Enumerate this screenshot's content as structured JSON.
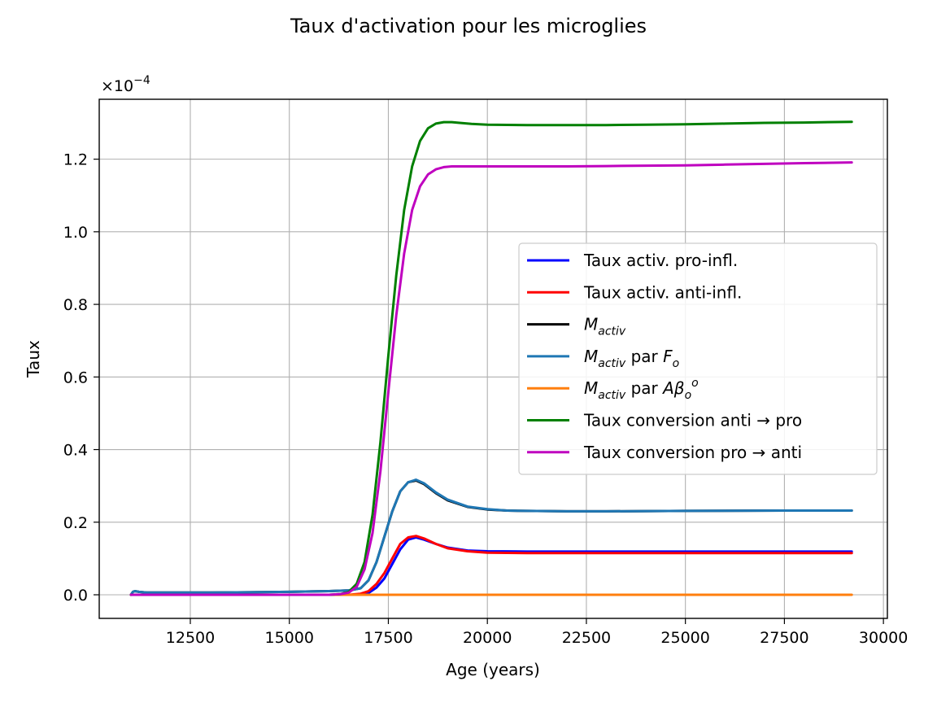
{
  "chart_data": {
    "type": "line",
    "title": "Taux d'activation pour les microglies",
    "xlabel": "Age (years)",
    "ylabel": "Taux",
    "y_multiplier": "×10",
    "y_multiplier_exp": "−4",
    "xlim": [
      10200,
      30100
    ],
    "ylim": [
      -0.065,
      1.365
    ],
    "xticks": [
      12500,
      15000,
      17500,
      20000,
      22500,
      25000,
      27500,
      30000
    ],
    "xtick_labels": [
      "12500",
      "15000",
      "17500",
      "20000",
      "22500",
      "25000",
      "27500",
      "30000"
    ],
    "yticks": [
      0.0,
      0.2,
      0.4,
      0.6,
      0.8,
      1.0,
      1.2
    ],
    "ytick_labels": [
      "0.0",
      "0.2",
      "0.4",
      "0.6",
      "0.8",
      "1.0",
      "1.2"
    ],
    "grid": true,
    "legend_position": "center-right",
    "series": [
      {
        "name": "Taux activ. pro-infl.",
        "legend": [
          {
            "t": "Taux activ. pro-infl."
          }
        ],
        "color": "#0000ff",
        "x": [
          11000,
          11100,
          11300,
          12000,
          14000,
          16000,
          16800,
          17000,
          17200,
          17400,
          17600,
          17800,
          18000,
          18200,
          18400,
          18700,
          19000,
          19500,
          20000,
          21000,
          22000,
          25000,
          27500,
          29200
        ],
        "y": [
          0.0,
          0.0,
          0.0,
          0.0,
          0.0,
          0.0,
          0.0,
          0.005,
          0.02,
          0.045,
          0.085,
          0.125,
          0.152,
          0.158,
          0.152,
          0.14,
          0.13,
          0.122,
          0.12,
          0.119,
          0.119,
          0.119,
          0.119,
          0.119
        ]
      },
      {
        "name": "Taux activ. anti-infl.",
        "legend": [
          {
            "t": "Taux activ. anti-infl."
          }
        ],
        "color": "#ff0000",
        "x": [
          11000,
          11100,
          11300,
          12000,
          14000,
          16000,
          16500,
          16800,
          17000,
          17200,
          17400,
          17600,
          17800,
          18000,
          18200,
          18400,
          18700,
          19000,
          19500,
          20000,
          21000,
          22000,
          25000,
          27500,
          29200
        ],
        "y": [
          0.0,
          0.0,
          0.0,
          0.0,
          0.0,
          0.0,
          0.0,
          0.003,
          0.01,
          0.03,
          0.06,
          0.1,
          0.14,
          0.158,
          0.162,
          0.155,
          0.14,
          0.128,
          0.12,
          0.116,
          0.115,
          0.115,
          0.115,
          0.115,
          0.115
        ]
      },
      {
        "name": "M_activ",
        "legend": [
          {
            "t": "M",
            "i": true
          },
          {
            "t": "activ",
            "i": true,
            "sub": true
          }
        ],
        "color": "#000000",
        "x": [
          11000,
          11050,
          11100,
          11200,
          11400,
          12000,
          13000,
          14000,
          15000,
          16000,
          16500,
          16800,
          17000,
          17200,
          17400,
          17600,
          17800,
          18000,
          18200,
          18400,
          18700,
          19000,
          19500,
          20000,
          20500,
          21000,
          22000,
          23000,
          25000,
          27500,
          29200
        ],
        "y": [
          0.0,
          0.008,
          0.01,
          0.008,
          0.006,
          0.006,
          0.006,
          0.007,
          0.008,
          0.01,
          0.012,
          0.018,
          0.04,
          0.09,
          0.16,
          0.23,
          0.285,
          0.31,
          0.315,
          0.305,
          0.28,
          0.26,
          0.242,
          0.235,
          0.232,
          0.231,
          0.23,
          0.23,
          0.231,
          0.232,
          0.232
        ]
      },
      {
        "name": "M_activ par F_o",
        "legend": [
          {
            "t": "M",
            "i": true
          },
          {
            "t": "activ",
            "i": true,
            "sub": true
          },
          {
            "t": " par "
          },
          {
            "t": "F",
            "i": true
          },
          {
            "t": "o",
            "i": true,
            "sub": true
          }
        ],
        "color": "#1f77b4",
        "x": [
          11000,
          11050,
          11100,
          11200,
          11400,
          12000,
          13000,
          14000,
          15000,
          16000,
          16500,
          16800,
          17000,
          17200,
          17400,
          17600,
          17800,
          18000,
          18200,
          18400,
          18700,
          19000,
          19500,
          20000,
          20500,
          21000,
          22000,
          23000,
          25000,
          27500,
          29200
        ],
        "y": [
          0.0,
          0.008,
          0.01,
          0.008,
          0.006,
          0.006,
          0.006,
          0.007,
          0.008,
          0.01,
          0.012,
          0.018,
          0.04,
          0.09,
          0.16,
          0.23,
          0.285,
          0.31,
          0.317,
          0.307,
          0.282,
          0.262,
          0.243,
          0.236,
          0.232,
          0.231,
          0.23,
          0.23,
          0.231,
          0.232,
          0.232
        ]
      },
      {
        "name": "M_activ par Aβ_o^o",
        "legend": [
          {
            "t": "M",
            "i": true
          },
          {
            "t": "activ",
            "i": true,
            "sub": true
          },
          {
            "t": " par "
          },
          {
            "t": "Aβ",
            "i": true
          },
          {
            "t": "o",
            "i": true,
            "sub": true
          },
          {
            "t": "o",
            "i": true,
            "sup": true
          }
        ],
        "color": "#ff7f0e",
        "x": [
          11000,
          29200
        ],
        "y": [
          0.0,
          0.0
        ]
      },
      {
        "name": "Taux conversion anti → pro",
        "legend": [
          {
            "t": "Taux conversion anti → pro"
          }
        ],
        "color": "#008000",
        "x": [
          11000,
          12000,
          14000,
          15500,
          16000,
          16300,
          16500,
          16700,
          16900,
          17100,
          17300,
          17500,
          17700,
          17900,
          18100,
          18300,
          18500,
          18700,
          18900,
          19100,
          19300,
          19600,
          20000,
          21000,
          22000,
          23000,
          24000,
          25000,
          26000,
          27000,
          28000,
          29200
        ],
        "y": [
          0.0,
          0.0,
          0.0,
          0.0,
          0.0,
          0.002,
          0.008,
          0.03,
          0.09,
          0.22,
          0.42,
          0.66,
          0.88,
          1.06,
          1.18,
          1.25,
          1.285,
          1.298,
          1.302,
          1.302,
          1.3,
          1.297,
          1.295,
          1.294,
          1.294,
          1.294,
          1.295,
          1.296,
          1.298,
          1.3,
          1.301,
          1.303
        ]
      },
      {
        "name": "Taux conversion pro → anti",
        "legend": [
          {
            "t": "Taux conversion pro → anti"
          }
        ],
        "color": "#bf00bf",
        "x": [
          11000,
          12000,
          14000,
          15500,
          16000,
          16300,
          16500,
          16700,
          16900,
          17100,
          17300,
          17500,
          17700,
          17900,
          18100,
          18300,
          18500,
          18700,
          18900,
          19100,
          19300,
          19600,
          20000,
          21000,
          22000,
          23000,
          24000,
          25000,
          26000,
          27000,
          28000,
          29200
        ],
        "y": [
          0.0,
          0.0,
          0.0,
          0.0,
          0.0,
          0.002,
          0.006,
          0.022,
          0.07,
          0.17,
          0.34,
          0.56,
          0.77,
          0.94,
          1.06,
          1.125,
          1.158,
          1.172,
          1.178,
          1.18,
          1.18,
          1.18,
          1.18,
          1.18,
          1.18,
          1.181,
          1.182,
          1.183,
          1.185,
          1.187,
          1.189,
          1.191
        ]
      }
    ]
  }
}
